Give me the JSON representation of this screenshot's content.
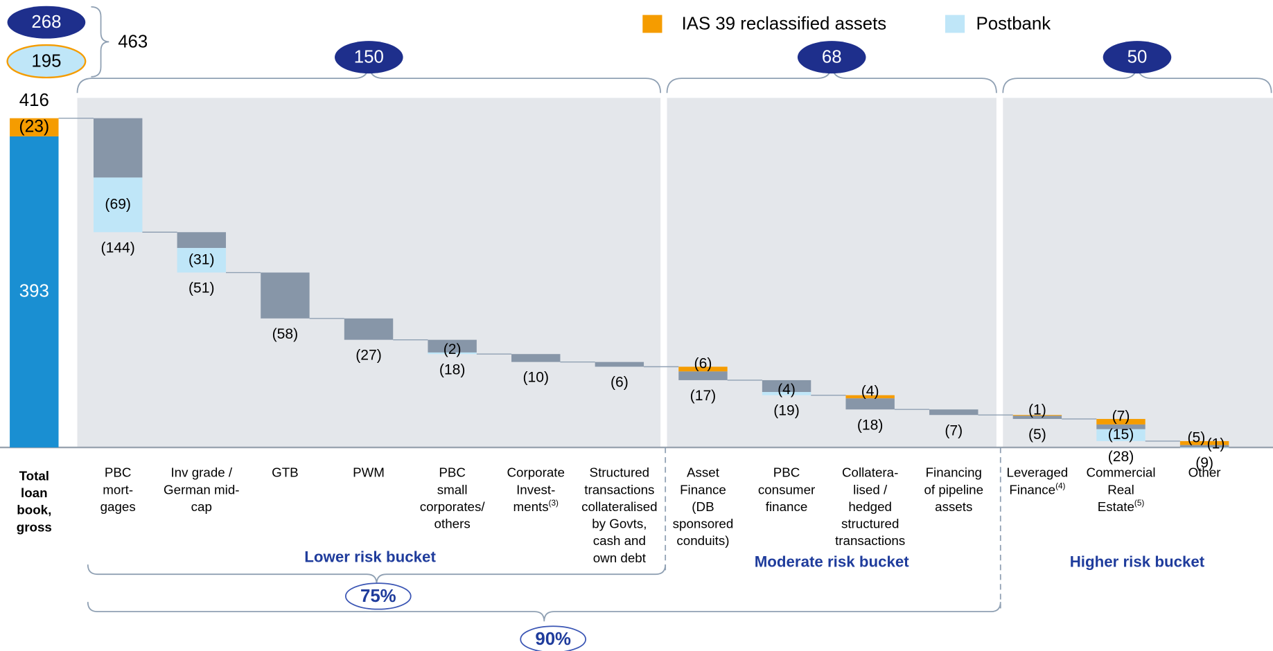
{
  "chart_data": {
    "type": "waterfall",
    "total": {
      "label": "Total\nloan\nbook,\ngross",
      "value": 416,
      "base": 393,
      "base_color": "#1a8fd2",
      "ias": 23,
      "ias_label": "(23)"
    },
    "summary": {
      "values": [
        268,
        195
      ],
      "total": 463
    },
    "legend": [
      "IAS 39 reclassified assets",
      "Postbank"
    ],
    "categories": [
      "PBC\nmort-\ngages",
      "Inv grade /\nGerman mid-\ncap",
      "GTB",
      "PWM",
      "PBC\nsmall\ncorporates/\nothers",
      "Corporate\nInvest-\nments(3)",
      "Structured\ntransactions\ncollateralised\nby Govts,\ncash and\nown debt",
      "Asset\nFinance\n(DB\nsponsored\nconduits)",
      "PBC\nconsumer\nfinance",
      "Collatera-\nlised /\nhedged\nstructured\ntransactions",
      "Financing\nof pipeline\nassets",
      "Leveraged\nFinance(4)",
      "Commercial\nReal\nEstate(5)",
      "Other"
    ],
    "values": [
      144,
      51,
      58,
      27,
      18,
      10,
      6,
      17,
      19,
      18,
      7,
      5,
      28,
      9
    ],
    "value_labels": [
      "(144)",
      "(51)",
      "(58)",
      "(27)",
      "(18)",
      "(10)",
      "(6)",
      "(17)",
      "(19)",
      "(18)",
      "(7)",
      "(5)",
      "(28)",
      "(9)"
    ],
    "color": "#8796a8",
    "series": [
      {
        "name": "IAS 39 reclassified assets",
        "color": "#f59c00",
        "values": [
          null,
          null,
          null,
          null,
          null,
          null,
          null,
          6,
          null,
          4,
          null,
          1,
          7,
          5
        ],
        "value_labels": [
          null,
          null,
          null,
          null,
          null,
          null,
          null,
          "(6)",
          null,
          "(4)",
          null,
          "(1)",
          "(7)",
          "(5)"
        ]
      },
      {
        "name": "Postbank",
        "color": "#bfe6f8",
        "values": [
          69,
          31,
          null,
          null,
          2,
          null,
          null,
          null,
          4,
          null,
          null,
          null,
          15,
          1
        ],
        "value_labels": [
          "(69)",
          "(31)",
          null,
          null,
          "(2)",
          null,
          null,
          null,
          "(4)",
          null,
          null,
          null,
          "(15)",
          "(1)"
        ]
      }
    ],
    "buckets": [
      {
        "name": "Lower risk bucket",
        "amount": 150
      },
      {
        "name": "Moderate risk bucket",
        "amount": 68
      },
      {
        "name": "Higher risk bucket",
        "amount": 50
      }
    ],
    "cumulative_shares": [
      {
        "value": 75,
        "label": "75%"
      },
      {
        "value": 90,
        "label": "90%"
      }
    ]
  }
}
